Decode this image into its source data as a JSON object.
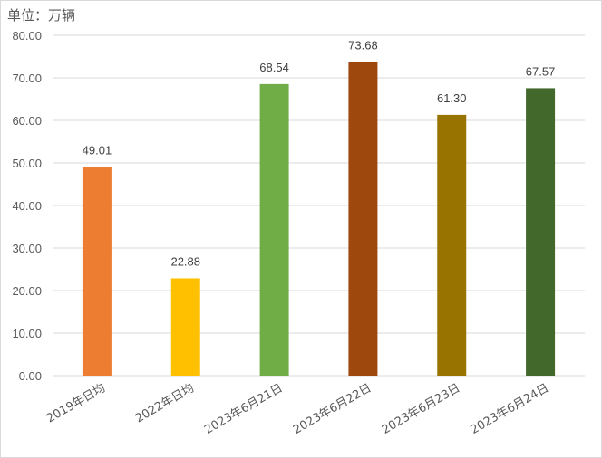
{
  "unit_label": "单位：万辆",
  "chart_data": {
    "type": "bar",
    "categories": [
      "2019年日均",
      "2022年日均",
      "2023年6月21日",
      "2023年6月22日",
      "2023年6月23日",
      "2023年6月24日"
    ],
    "values": [
      49.01,
      22.88,
      68.54,
      73.68,
      61.3,
      67.57
    ],
    "value_labels": [
      "49.01",
      "22.88",
      "68.54",
      "73.68",
      "61.30",
      "67.57"
    ],
    "colors": [
      "#ED7D31",
      "#FFC000",
      "#70AD47",
      "#9E480E",
      "#997300",
      "#43682B"
    ],
    "ylim": [
      0,
      80
    ],
    "yticks": [
      "0.00",
      "10.00",
      "20.00",
      "30.00",
      "40.00",
      "50.00",
      "60.00",
      "70.00",
      "80.00"
    ],
    "ytick_values": [
      0,
      10,
      20,
      30,
      40,
      50,
      60,
      70,
      80
    ],
    "grid": true,
    "legend": "none"
  }
}
